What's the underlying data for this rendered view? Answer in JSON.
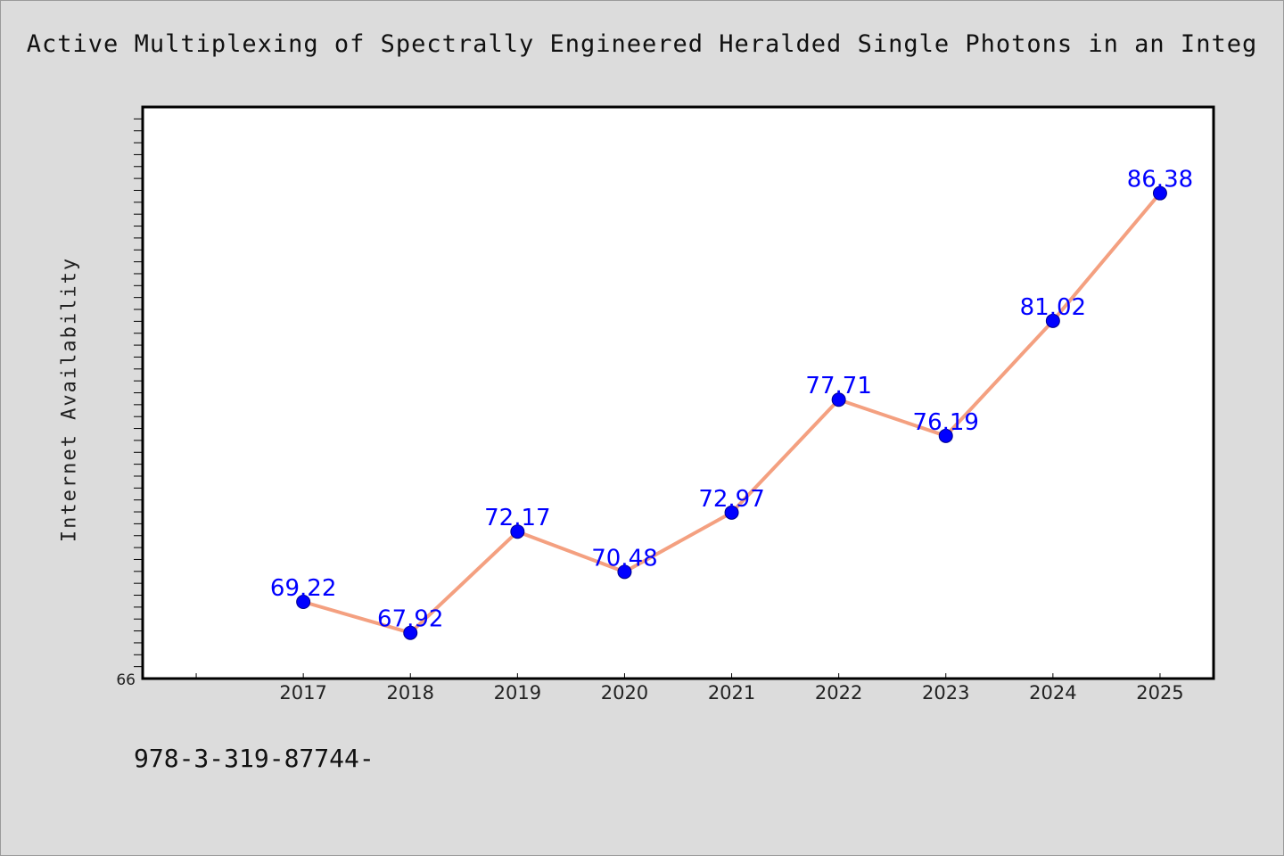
{
  "title": "Active Multiplexing of Spectrally Engineered Heralded Single Photons in an Integ",
  "footer_code": "978-3-319-87744-",
  "colors": {
    "background": "#dcdcdc",
    "plot_area": "#ffffff",
    "line": "#f4a080",
    "marker": "#0000ff",
    "label": "#0000ff"
  },
  "chart_data": {
    "type": "line",
    "title": "Active Multiplexing of Spectrally Engineered Heralded Single Photons in an Integ",
    "xlabel": "",
    "ylabel": "Internet Availability",
    "categories": [
      "2017",
      "2018",
      "2019",
      "2020",
      "2021",
      "2022",
      "2023",
      "2024",
      "2025"
    ],
    "values": [
      69.22,
      67.92,
      72.17,
      70.48,
      72.97,
      77.71,
      76.19,
      81.02,
      86.38
    ],
    "data_labels": [
      "69.22",
      "67.92",
      "72.17",
      "70.48",
      "72.97",
      "77.71",
      "76.19",
      "81.02",
      "86.38"
    ],
    "y_tick_labels": [
      "66"
    ],
    "ylim": [
      66,
      90
    ],
    "x_range": [
      2015.5,
      2025.5
    ],
    "grid": false,
    "legend": "none",
    "markers": "circle"
  }
}
